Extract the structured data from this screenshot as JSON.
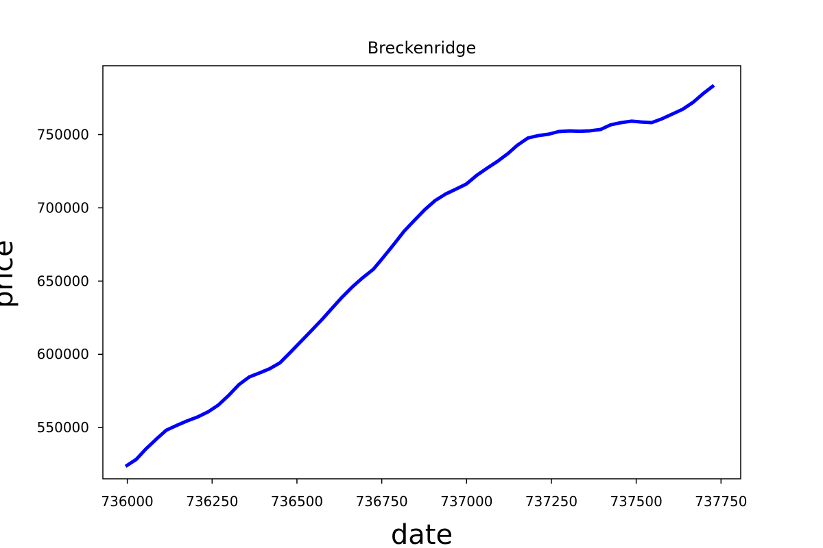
{
  "chart_data": {
    "type": "line",
    "title": "Breckenridge",
    "xlabel": "date",
    "ylabel": "price",
    "xlim": [
      735928,
      737808
    ],
    "ylim": [
      515000,
      797000
    ],
    "x_ticks": [
      736000,
      736250,
      736500,
      736750,
      737000,
      737250,
      737500,
      737750
    ],
    "y_ticks": [
      550000,
      600000,
      650000,
      700000,
      750000
    ],
    "grid": false,
    "series": [
      {
        "color": "#0000ff",
        "x": [
          735995,
          736026,
          736054,
          736085,
          736115,
          736146,
          736176,
          736207,
          736238,
          736268,
          736299,
          736329,
          736360,
          736391,
          736419,
          736450,
          736480,
          736511,
          736541,
          736572,
          736603,
          736633,
          736664,
          736694,
          736725,
          736756,
          736785,
          736816,
          736846,
          736877,
          736907,
          736938,
          736969,
          736999,
          737030,
          737060,
          737091,
          737122,
          737150,
          737181,
          737211,
          737242,
          737272,
          737303,
          737334,
          737364,
          737395,
          737425,
          737456,
          737487,
          737515,
          737546,
          737576,
          737607,
          737637,
          737668,
          737699,
          737729
        ],
        "y": [
          523500,
          528200,
          535200,
          542000,
          548200,
          551500,
          554500,
          557200,
          560700,
          565300,
          572000,
          579300,
          584600,
          587400,
          590100,
          594200,
          601200,
          608600,
          615800,
          623300,
          631300,
          639000,
          646200,
          652300,
          658000,
          666600,
          674900,
          684100,
          691400,
          698800,
          704900,
          709400,
          712800,
          716200,
          722200,
          727000,
          731700,
          737100,
          742800,
          747700,
          749300,
          750300,
          752100,
          752500,
          752300,
          752600,
          753500,
          756700,
          758200,
          759200,
          758600,
          758200,
          760800,
          764100,
          767300,
          772100,
          778300,
          783600
        ]
      }
    ]
  }
}
